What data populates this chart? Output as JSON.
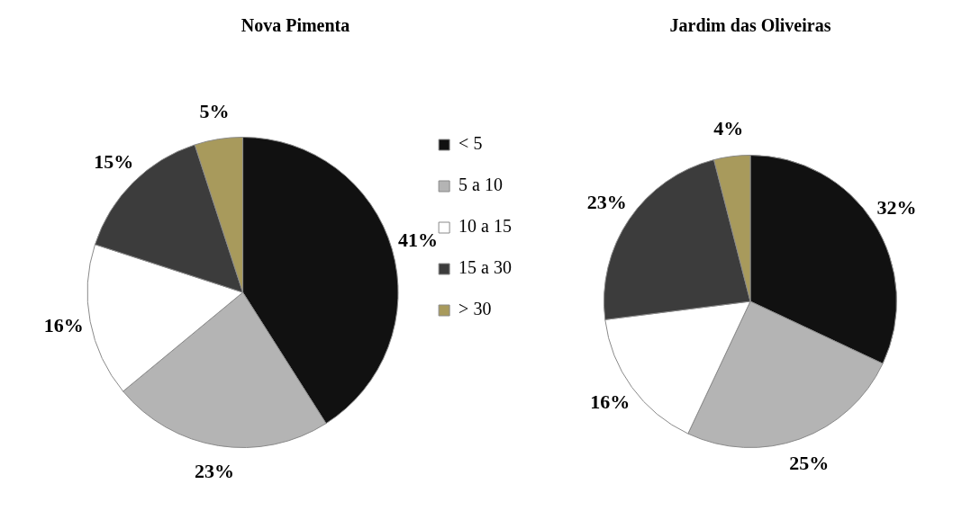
{
  "chart_data": [
    {
      "type": "pie",
      "title": "Nova Pimenta",
      "categories": [
        "< 5",
        "5 a 10",
        "10 a 15",
        "15 a 30",
        "> 30"
      ],
      "values": [
        41,
        23,
        16,
        15,
        5
      ],
      "value_labels": [
        "41%",
        "23%",
        "16%",
        "15%",
        "5%"
      ],
      "colors": [
        "#111111",
        "#b4b4b4",
        "#ffffff",
        "#3c3c3c",
        "#a89a5c"
      ],
      "legend": "right"
    },
    {
      "type": "pie",
      "title": "Jardim das Oliveiras",
      "values": [
        32,
        25,
        16,
        23,
        4
      ],
      "value_labels": [
        "32%",
        "25%",
        "16%",
        "23%",
        "4%"
      ],
      "colors": [
        "#111111",
        "#b4b4b4",
        "#ffffff",
        "#3c3c3c",
        "#a89a5c"
      ]
    }
  ]
}
